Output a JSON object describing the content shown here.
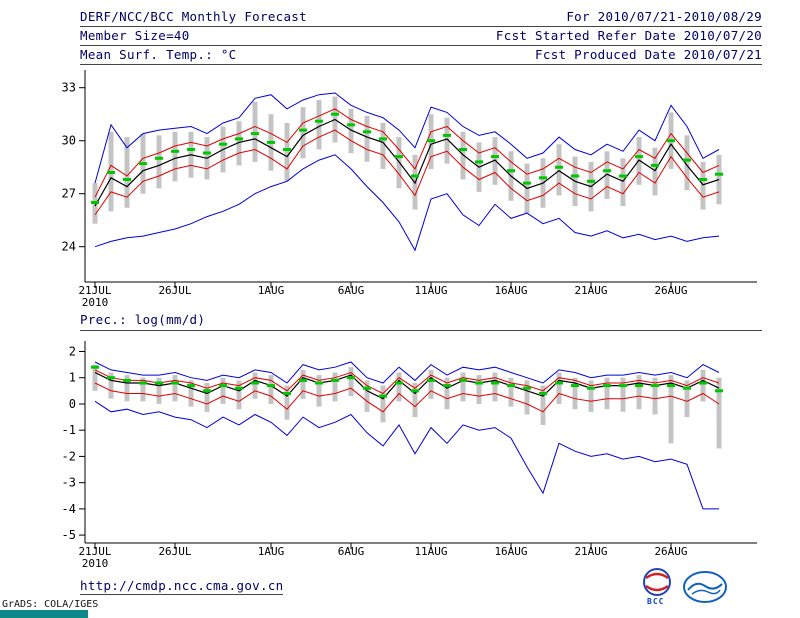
{
  "header": {
    "title": "DERF/NCC/BCC Monthly Forecast",
    "for_range": "For 2010/07/21-2010/08/29",
    "member_size": "Member Size=40",
    "fcst_ref": "Fcst Started Refer Date 2010/07/20",
    "fcst_produced": "Fcst Produced Date 2010/07/21"
  },
  "footer": {
    "url": "http://cmdp.ncc.cma.gov.cn",
    "credit": "GrADS: COLA/IGES",
    "logo_bcc_label": "BCC"
  },
  "colors": {
    "header_text": "#000066",
    "line_blue": "#0000dd",
    "line_red": "#e00000",
    "line_black": "#000000",
    "line_green": "#00c800",
    "bar_gray": "#c4c4c4",
    "teal_strip": "#0e8888"
  },
  "chart_data": [
    {
      "type": "line",
      "name": "temp",
      "title": "Mean Surf. Temp.: °C",
      "ylim": [
        22,
        34
      ],
      "yticks": [
        24,
        27,
        30,
        33
      ],
      "x_tick_days": [
        0,
        5,
        11,
        16,
        21,
        26,
        31,
        36
      ],
      "x_tick_labels": [
        "21JUL",
        "26JUL",
        "1AUG",
        "6AUG",
        "11AUG",
        "16AUG",
        "21AUG",
        "26AUG"
      ],
      "x_sub_label": "2010",
      "x": [
        "21JUL",
        "22JUL",
        "23JUL",
        "24JUL",
        "25JUL",
        "26JUL",
        "27JUL",
        "28JUL",
        "29JUL",
        "30JUL",
        "31JUL",
        "1AUG",
        "2AUG",
        "3AUG",
        "4AUG",
        "5AUG",
        "6AUG",
        "7AUG",
        "8AUG",
        "9AUG",
        "10AUG",
        "11AUG",
        "12AUG",
        "13AUG",
        "14AUG",
        "15AUG",
        "16AUG",
        "17AUG",
        "18AUG",
        "19AUG",
        "20AUG",
        "21AUG",
        "22AUG",
        "23AUG",
        "24AUG",
        "25AUG",
        "26AUG",
        "27AUG",
        "28AUG",
        "29AUG"
      ],
      "series": [
        {
          "name": "ensemble-max",
          "color": "#0000dd",
          "values": [
            27.6,
            30.9,
            29.6,
            30.4,
            30.6,
            30.7,
            30.8,
            30.4,
            31.0,
            31.3,
            32.4,
            32.6,
            31.8,
            32.3,
            32.6,
            32.7,
            32.0,
            31.6,
            31.3,
            30.6,
            29.6,
            31.9,
            31.6,
            30.8,
            30.3,
            30.5,
            29.8,
            29.0,
            29.3,
            30.2,
            29.5,
            29.2,
            29.8,
            29.4,
            30.6,
            30.0,
            32.0,
            30.8,
            29.0,
            29.5
          ]
        },
        {
          "name": "ensemble-min",
          "color": "#0000dd",
          "values": [
            24.0,
            24.3,
            24.5,
            24.6,
            24.8,
            25.0,
            25.3,
            25.7,
            26.0,
            26.4,
            27.0,
            27.4,
            27.7,
            28.4,
            28.9,
            29.2,
            28.4,
            27.4,
            26.5,
            25.4,
            23.8,
            26.7,
            27.0,
            25.8,
            25.2,
            26.4,
            25.6,
            25.9,
            25.3,
            25.6,
            24.8,
            24.6,
            24.9,
            24.5,
            24.7,
            24.4,
            24.6,
            24.3,
            24.5,
            24.6
          ]
        },
        {
          "name": "upper-quartile",
          "color": "#e00000",
          "values": [
            26.8,
            28.6,
            28.0,
            29.0,
            29.3,
            29.7,
            29.9,
            29.7,
            30.1,
            30.4,
            30.8,
            30.4,
            29.9,
            31.0,
            31.4,
            31.8,
            31.2,
            30.8,
            30.5,
            29.5,
            28.4,
            30.5,
            30.8,
            30.0,
            29.3,
            29.6,
            28.8,
            28.1,
            28.4,
            29.0,
            28.5,
            28.2,
            28.8,
            28.4,
            29.5,
            29.0,
            30.4,
            29.3,
            28.2,
            28.6
          ]
        },
        {
          "name": "lower-quartile",
          "color": "#e00000",
          "values": [
            25.8,
            27.1,
            26.8,
            27.7,
            28.0,
            28.4,
            28.6,
            28.4,
            28.9,
            29.3,
            29.5,
            29.0,
            28.4,
            29.7,
            30.2,
            30.6,
            30.0,
            29.5,
            29.2,
            28.1,
            26.9,
            29.1,
            29.4,
            28.5,
            27.8,
            28.2,
            27.3,
            26.6,
            26.9,
            27.6,
            27.0,
            26.7,
            27.4,
            27.0,
            28.2,
            27.6,
            29.1,
            27.9,
            26.8,
            27.1
          ]
        },
        {
          "name": "median",
          "color": "#000000",
          "width": 1.2,
          "values": [
            26.3,
            27.9,
            27.4,
            28.3,
            28.6,
            29.0,
            29.2,
            29.0,
            29.5,
            29.9,
            30.1,
            29.6,
            29.1,
            30.3,
            30.8,
            31.2,
            30.6,
            30.2,
            29.9,
            28.8,
            27.6,
            29.8,
            30.1,
            29.2,
            28.5,
            28.9,
            28.0,
            27.3,
            27.6,
            28.3,
            27.7,
            27.4,
            28.1,
            27.7,
            28.9,
            28.3,
            29.8,
            28.6,
            27.5,
            27.8
          ]
        },
        {
          "name": "ensemble-mean",
          "color": "#00c800",
          "style": "dash-thick",
          "values": [
            26.5,
            28.2,
            27.8,
            28.7,
            29.0,
            29.4,
            29.5,
            29.3,
            29.8,
            30.1,
            30.4,
            29.9,
            29.5,
            30.6,
            31.1,
            31.5,
            30.9,
            30.5,
            30.1,
            29.1,
            28.0,
            30.0,
            30.3,
            29.5,
            28.8,
            29.1,
            28.3,
            27.6,
            27.9,
            28.5,
            28.0,
            27.7,
            28.3,
            28.0,
            29.1,
            28.6,
            30.0,
            28.9,
            27.8,
            28.1
          ]
        }
      ],
      "bars": {
        "name": "member-spread",
        "color": "#c4c4c4",
        "low": [
          25.3,
          26.0,
          26.2,
          27.0,
          27.3,
          27.7,
          27.9,
          27.8,
          28.2,
          28.6,
          28.8,
          28.3,
          27.7,
          29.0,
          29.5,
          29.9,
          29.3,
          28.8,
          28.4,
          27.3,
          26.1,
          28.4,
          28.7,
          27.8,
          27.1,
          27.5,
          26.6,
          25.9,
          26.2,
          26.9,
          26.3,
          26.0,
          26.7,
          26.3,
          27.5,
          26.9,
          28.4,
          27.2,
          26.1,
          26.4
        ],
        "high": [
          27.6,
          30.5,
          30.2,
          30.4,
          30.3,
          30.5,
          30.5,
          30.2,
          30.8,
          31.1,
          32.2,
          31.5,
          31.0,
          31.9,
          32.3,
          32.5,
          31.8,
          31.4,
          31.0,
          30.2,
          29.2,
          31.5,
          31.3,
          30.5,
          29.9,
          30.2,
          29.4,
          28.7,
          29.0,
          29.8,
          29.1,
          28.8,
          29.4,
          29.0,
          30.2,
          29.6,
          31.6,
          30.3,
          28.8,
          29.2
        ]
      }
    },
    {
      "type": "line",
      "name": "prec",
      "title": "Prec.: log(mm/d)",
      "ylim": [
        -5.3,
        2.4
      ],
      "yticks": [
        -5,
        -4,
        -3,
        -2,
        -1,
        0,
        1,
        2
      ],
      "x_tick_days": [
        0,
        5,
        11,
        16,
        21,
        26,
        31,
        36
      ],
      "x_tick_labels": [
        "21JUL",
        "26JUL",
        "1AUG",
        "6AUG",
        "11AUG",
        "16AUG",
        "21AUG",
        "26AUG"
      ],
      "x_sub_label": "2010",
      "x": [
        "21JUL",
        "22JUL",
        "23JUL",
        "24JUL",
        "25JUL",
        "26JUL",
        "27JUL",
        "28JUL",
        "29JUL",
        "30JUL",
        "31JUL",
        "1AUG",
        "2AUG",
        "3AUG",
        "4AUG",
        "5AUG",
        "6AUG",
        "7AUG",
        "8AUG",
        "9AUG",
        "10AUG",
        "11AUG",
        "12AUG",
        "13AUG",
        "14AUG",
        "15AUG",
        "16AUG",
        "17AUG",
        "18AUG",
        "19AUG",
        "20AUG",
        "21AUG",
        "22AUG",
        "23AUG",
        "24AUG",
        "25AUG",
        "26AUG",
        "27AUG",
        "28AUG",
        "29AUG"
      ],
      "series": [
        {
          "name": "ensemble-max",
          "color": "#0000dd",
          "values": [
            1.6,
            1.3,
            1.2,
            1.1,
            1.1,
            1.2,
            1.0,
            0.9,
            1.1,
            1.0,
            1.3,
            1.2,
            0.8,
            1.5,
            1.3,
            1.4,
            1.6,
            1.0,
            0.8,
            1.4,
            0.9,
            1.5,
            1.1,
            1.4,
            1.3,
            1.4,
            1.2,
            1.0,
            0.8,
            1.3,
            1.2,
            1.0,
            1.1,
            1.1,
            1.2,
            1.1,
            1.2,
            1.0,
            1.5,
            1.2
          ]
        },
        {
          "name": "ensemble-min",
          "color": "#0000dd",
          "values": [
            0.1,
            -0.3,
            -0.2,
            -0.4,
            -0.3,
            -0.5,
            -0.6,
            -0.9,
            -0.5,
            -0.8,
            -0.4,
            -0.7,
            -1.2,
            -0.5,
            -0.9,
            -0.7,
            -0.4,
            -1.1,
            -1.6,
            -0.8,
            -1.9,
            -0.9,
            -1.5,
            -0.8,
            -1.0,
            -0.9,
            -1.3,
            -2.4,
            -3.4,
            -1.5,
            -1.8,
            -2.0,
            -1.9,
            -2.1,
            -2.0,
            -2.2,
            -2.1,
            -2.3,
            -4.0,
            -4.0
          ]
        },
        {
          "name": "upper-quartile",
          "color": "#e00000",
          "values": [
            1.3,
            1.0,
            0.9,
            0.9,
            0.8,
            0.9,
            0.8,
            0.6,
            0.8,
            0.7,
            1.0,
            0.9,
            0.5,
            1.1,
            0.9,
            1.0,
            1.2,
            0.7,
            0.4,
            1.0,
            0.6,
            1.1,
            0.8,
            1.0,
            0.9,
            1.0,
            0.8,
            0.7,
            0.5,
            1.0,
            0.9,
            0.7,
            0.8,
            0.8,
            0.9,
            0.8,
            0.9,
            0.7,
            1.0,
            0.8
          ]
        },
        {
          "name": "lower-quartile",
          "color": "#e00000",
          "values": [
            0.8,
            0.5,
            0.4,
            0.4,
            0.3,
            0.4,
            0.2,
            0.0,
            0.3,
            0.1,
            0.5,
            0.3,
            -0.2,
            0.5,
            0.3,
            0.4,
            0.6,
            0.1,
            -0.3,
            0.4,
            -0.1,
            0.5,
            0.2,
            0.4,
            0.3,
            0.4,
            0.2,
            0.0,
            -0.3,
            0.4,
            0.2,
            0.1,
            0.2,
            0.2,
            0.3,
            0.2,
            0.3,
            0.1,
            0.4,
            0.0
          ]
        },
        {
          "name": "median",
          "color": "#000000",
          "width": 1.2,
          "values": [
            1.2,
            0.9,
            0.8,
            0.8,
            0.7,
            0.8,
            0.6,
            0.4,
            0.7,
            0.5,
            0.9,
            0.7,
            0.3,
            1.0,
            0.8,
            0.9,
            1.1,
            0.5,
            0.2,
            0.9,
            0.4,
            1.0,
            0.6,
            0.9,
            0.8,
            0.9,
            0.7,
            0.5,
            0.3,
            0.9,
            0.8,
            0.6,
            0.7,
            0.7,
            0.8,
            0.7,
            0.8,
            0.6,
            0.9,
            0.6
          ]
        },
        {
          "name": "ensemble-mean",
          "color": "#00c800",
          "style": "dash-thick",
          "values": [
            1.4,
            1.0,
            0.9,
            0.8,
            0.8,
            0.8,
            0.7,
            0.5,
            0.7,
            0.6,
            0.8,
            0.7,
            0.4,
            0.9,
            0.8,
            0.9,
            1.0,
            0.6,
            0.3,
            0.8,
            0.5,
            0.9,
            0.7,
            0.9,
            0.8,
            0.8,
            0.7,
            0.6,
            0.4,
            0.8,
            0.7,
            0.6,
            0.7,
            0.7,
            0.7,
            0.7,
            0.7,
            0.6,
            0.8,
            0.5
          ]
        }
      ],
      "bars": {
        "name": "member-spread",
        "color": "#c4c4c4",
        "low": [
          0.5,
          0.2,
          0.1,
          0.1,
          0.0,
          0.1,
          -0.1,
          -0.3,
          0.0,
          -0.2,
          0.2,
          0.0,
          -0.6,
          0.2,
          -0.1,
          0.1,
          0.3,
          -0.3,
          -0.7,
          0.1,
          -0.5,
          0.2,
          -0.2,
          0.1,
          0.0,
          0.1,
          -0.1,
          -0.4,
          -0.8,
          0.0,
          -0.2,
          -0.3,
          -0.2,
          -0.3,
          -0.2,
          -0.4,
          -1.5,
          -0.5,
          0.1,
          -1.7
        ],
        "high": [
          1.5,
          1.2,
          1.1,
          1.0,
          1.0,
          1.1,
          0.9,
          0.8,
          1.0,
          0.9,
          1.2,
          1.1,
          0.7,
          1.3,
          1.1,
          1.2,
          1.4,
          0.9,
          0.7,
          1.2,
          0.8,
          1.3,
          1.0,
          1.2,
          1.1,
          1.2,
          1.0,
          0.9,
          0.7,
          1.2,
          1.0,
          0.9,
          1.0,
          1.0,
          1.1,
          1.0,
          1.1,
          0.9,
          1.3,
          1.0
        ]
      }
    }
  ]
}
